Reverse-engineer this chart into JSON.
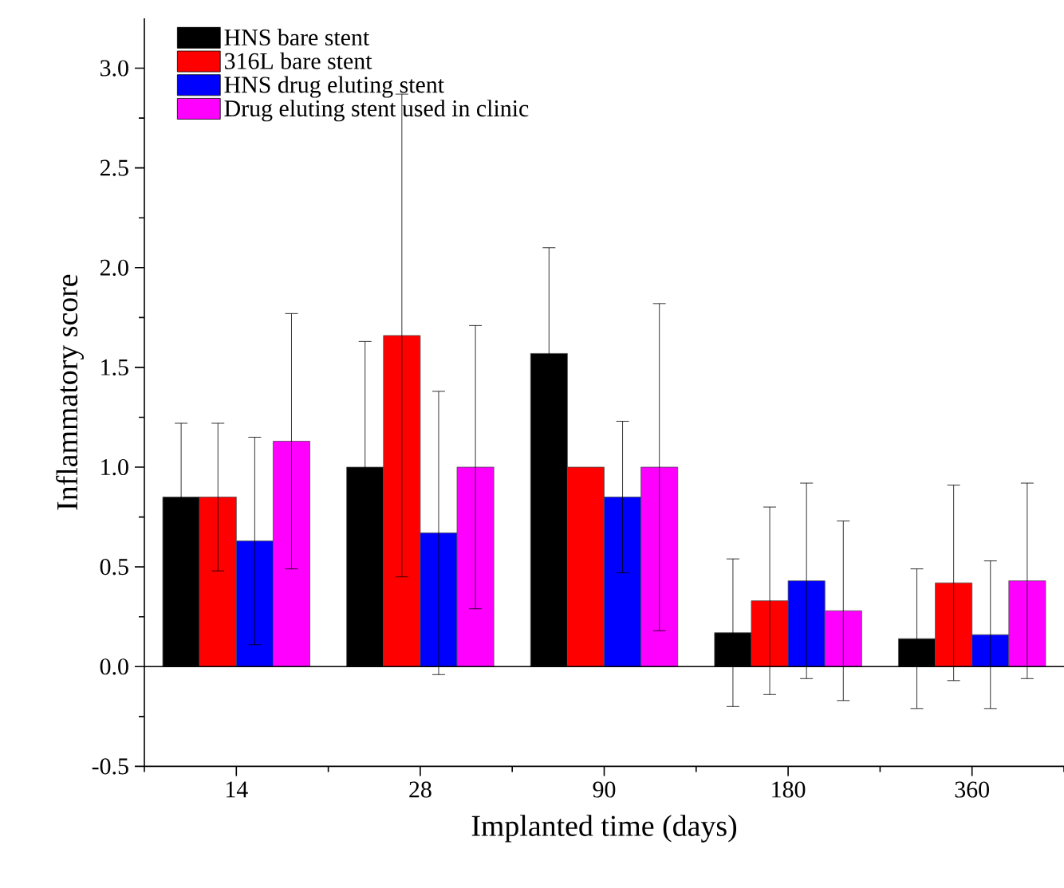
{
  "chart_data": {
    "type": "bar",
    "xlabel": "Implanted time (days)",
    "ylabel": "Inflammatory score",
    "categories": [
      "14",
      "28",
      "90",
      "180",
      "360"
    ],
    "series": [
      {
        "name": "HNS bare stent",
        "color": "#000000",
        "values": [
          0.85,
          1.0,
          1.57,
          0.17,
          0.14
        ],
        "errors": [
          0.37,
          0.63,
          0.53,
          0.37,
          0.35
        ]
      },
      {
        "name": "316L bare stent",
        "color": "#ff0000",
        "values": [
          0.85,
          1.66,
          1.0,
          0.33,
          0.42
        ],
        "errors": [
          0.37,
          1.21,
          null,
          0.47,
          0.49
        ]
      },
      {
        "name": "HNS drug eluting stent",
        "color": "#0000ff",
        "values": [
          0.63,
          0.67,
          0.85,
          0.43,
          0.16
        ],
        "errors": [
          0.52,
          0.71,
          0.38,
          0.49,
          0.37
        ]
      },
      {
        "name": "Drug eluting stent used in clinic",
        "color": "#ff00ff",
        "values": [
          1.13,
          1.0,
          1.0,
          0.28,
          0.43
        ],
        "errors": [
          0.64,
          0.71,
          0.82,
          0.45,
          0.49
        ]
      }
    ],
    "ylim": [
      -0.5,
      3.25
    ],
    "yticks": [
      {
        "value": -0.5,
        "label": "-0.5"
      },
      {
        "value": 0,
        "label": "0.0"
      },
      {
        "value": 0.5,
        "label": "0.5"
      },
      {
        "value": 1,
        "label": "1.0"
      },
      {
        "value": 1.5,
        "label": "1.5"
      },
      {
        "value": 2,
        "label": "2.0"
      },
      {
        "value": 2.5,
        "label": "2.5"
      },
      {
        "value": 3,
        "label": "3.0"
      }
    ],
    "ref_lines": [
      {
        "axis": "y",
        "value": 0
      }
    ],
    "legend": "top left",
    "grid": false
  }
}
